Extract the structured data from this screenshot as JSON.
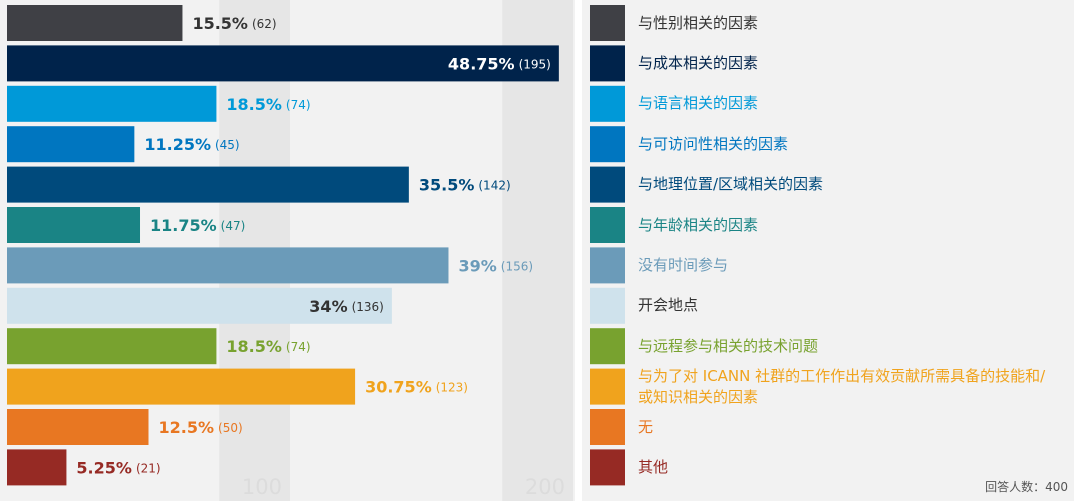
{
  "chart_data": {
    "type": "bar",
    "orientation": "horizontal",
    "categories": [
      "与性别相关的因素",
      "与成本相关的因素",
      "与语言相关的因素",
      "与可访问性相关的因素",
      "与地理位置/区域相关的因素",
      "与年龄相关的因素",
      "没有时间参与",
      "开会地点",
      "与远程参与相关的技术问题",
      "与为了对 ICANN 社群的工作作出有效贡献所需具备的技能和/或知识相关的因素",
      "无",
      "其他"
    ],
    "values": [
      62,
      195,
      74,
      45,
      142,
      47,
      156,
      136,
      74,
      123,
      50,
      21
    ],
    "count_labels": [
      "(62)",
      "(195)",
      "(74)",
      "(45)",
      "(142)",
      "(47)",
      "(156)",
      "(136)",
      "(74)",
      "(123)",
      "(50)",
      "(21)"
    ],
    "value_labels": [
      "15.5%",
      "48.75%",
      "18.5%",
      "11.25%",
      "35.5%",
      "11.75%",
      "39%",
      "34%",
      "18.5%",
      "30.75%",
      "12.5%",
      "5.25%"
    ],
    "colors": [
      "#3f4045",
      "#00234b",
      "#0099d8",
      "#0076c0",
      "#004a7c",
      "#1a8485",
      "#6b9bb9",
      "#cfe2ec",
      "#78a22f",
      "#f0a31d",
      "#e87722",
      "#962a24"
    ],
    "label_position": [
      "outside",
      "inside",
      "outside",
      "outside",
      "outside",
      "outside",
      "outside",
      "inside",
      "outside",
      "outside",
      "outside",
      "outside"
    ],
    "value_label_colors": [
      "#333333",
      "#ffffff",
      "#0099d8",
      "#0076c0",
      "#004a7c",
      "#1a8485",
      "#6b9bb9",
      "#333333",
      "#78a22f",
      "#f0a31d",
      "#e87722",
      "#962a24"
    ],
    "legend_label_colors": [
      "#333333",
      "#00234b",
      "#0099d8",
      "#0076c0",
      "#004a7c",
      "#1a8485",
      "#6b9bb9",
      "#333333",
      "#78a22f",
      "#f0a31d",
      "#e87722",
      "#962a24"
    ],
    "xlim": [
      0,
      200
    ],
    "xticks": [
      100,
      200
    ],
    "grid": true,
    "footnote": "回答人数：400"
  }
}
